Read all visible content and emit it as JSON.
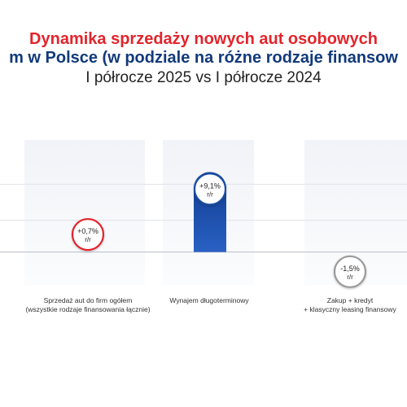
{
  "header": {
    "title_line1": "Dynamika sprzedaży nowych aut osobowych",
    "title_line2": "m w Polsce (w podziale na różne rodzaje finansow",
    "subtitle": "I półrocze 2025 vs I półrocze 2024"
  },
  "colors": {
    "title_red": "#e3242b",
    "title_blue": "#123a7a",
    "bar_blue": "#1e4fa3",
    "positive_ring": "#e3242b",
    "leasing_ring": "#1e4fa3",
    "negative_ring": "#9a9a9a"
  },
  "chart_data": {
    "type": "bar",
    "title": "Dynamika sprzedaży nowych aut osobowych",
    "categories": [
      [
        "Sprzedaż aut do firm ogółem",
        "(wszystkie rodzaje finansowania łącznie)"
      ],
      [
        "Wynajem długoterminowy"
      ],
      [
        "Zakup + kredyt",
        "+ klasyczny leasing finansowy"
      ]
    ],
    "values": [
      0.7,
      9.1,
      -1.5
    ],
    "data_labels": [
      [
        "+0,7%",
        "r/r"
      ],
      [
        "+9,1%",
        "r/r"
      ],
      [
        "-1,5%",
        "r/r"
      ]
    ],
    "unit": "%",
    "ylim": [
      -3,
      12
    ],
    "grid": true,
    "legend": "none"
  }
}
